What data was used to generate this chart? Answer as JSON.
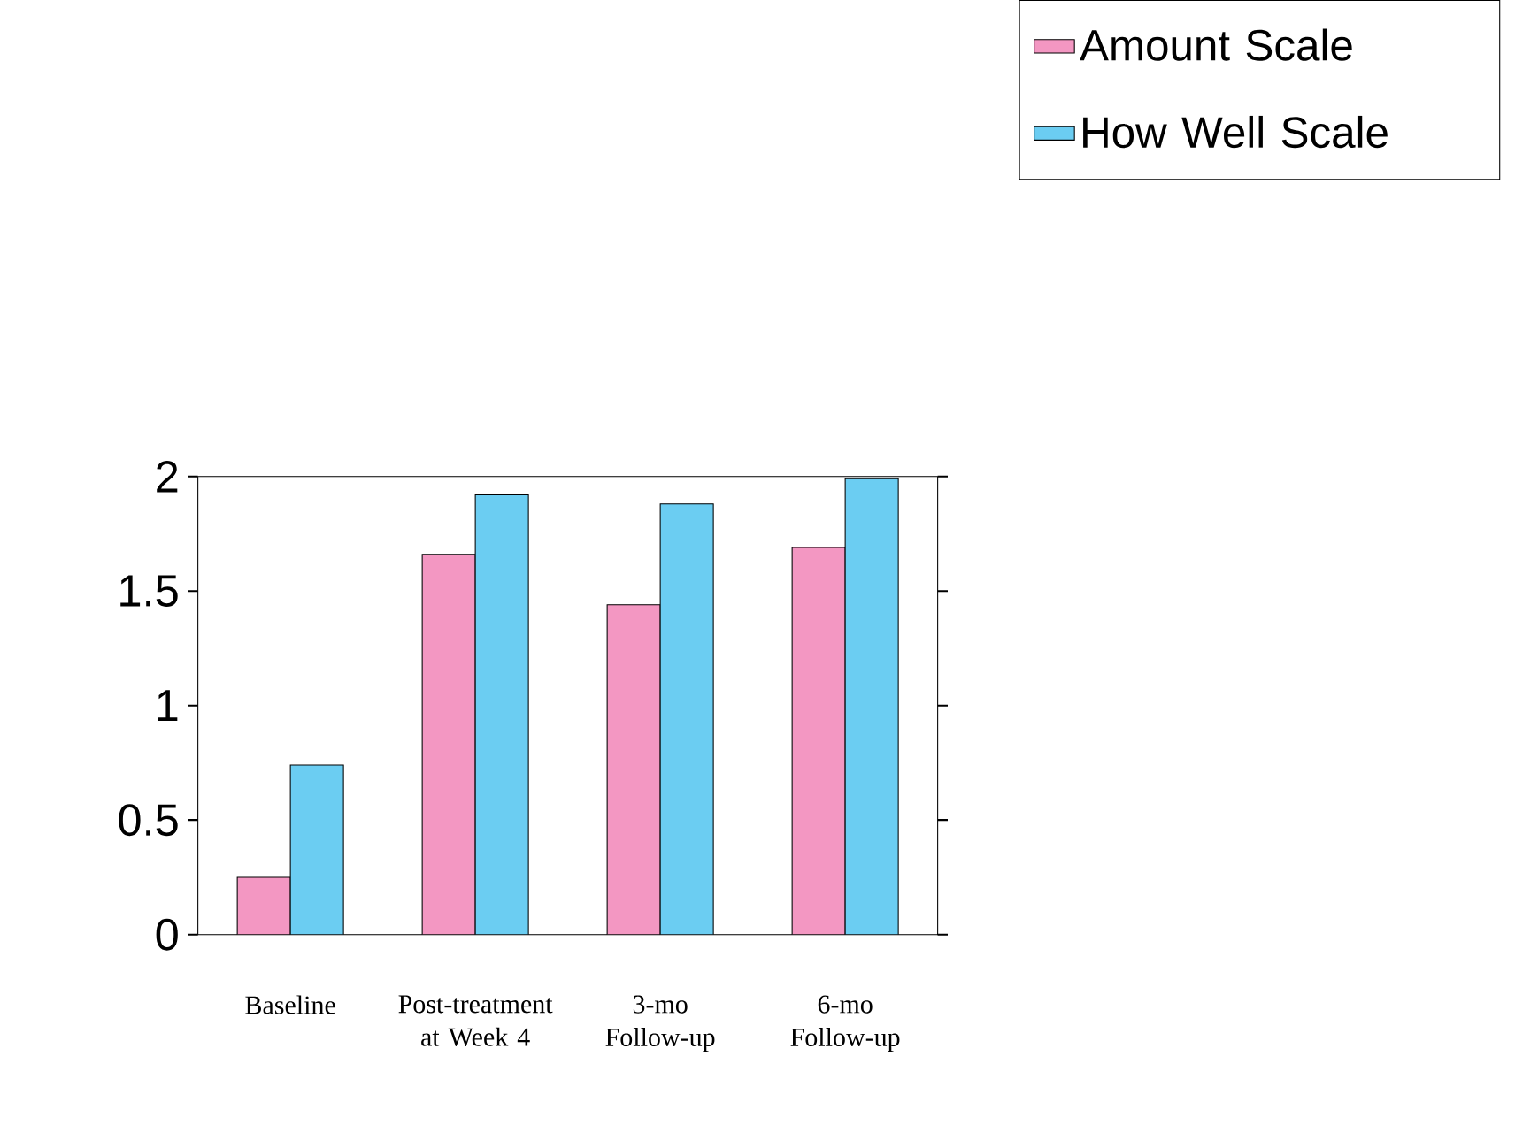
{
  "chart_data": {
    "type": "bar",
    "categories": [
      "Baseline",
      "Post-treatment at Week 4",
      "3-mo Follow-up",
      "6-mo Follow-up"
    ],
    "series": [
      {
        "name": "Amount Scale",
        "color": "#f397c2",
        "values": [
          0.25,
          1.66,
          1.44,
          1.69
        ]
      },
      {
        "name": "How Well Scale",
        "color": "#6bcdf2",
        "values": [
          0.74,
          1.92,
          1.88,
          1.99
        ]
      }
    ],
    "ylim": [
      0,
      2
    ],
    "yticks": [
      0,
      0.5,
      1,
      1.5,
      2
    ],
    "legend": "top right",
    "grid": false
  }
}
